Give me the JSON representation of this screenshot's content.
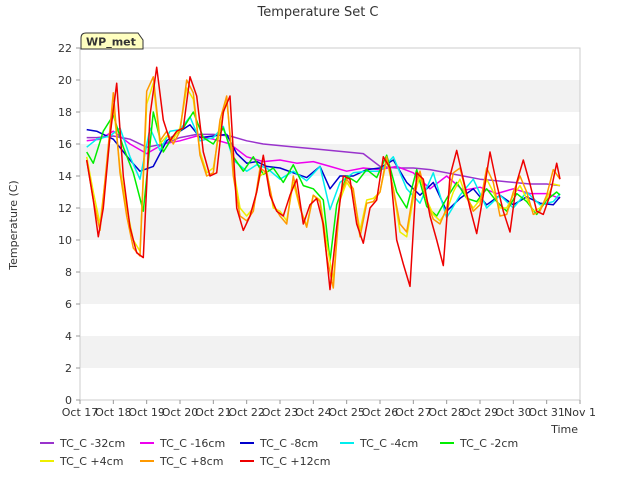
{
  "chart_data": {
    "type": "line",
    "title": "Temperature Set C",
    "xlabel": "Time",
    "ylabel": "Temperature (C)",
    "badge": "WP_met",
    "xlim": [
      0,
      15
    ],
    "ylim": [
      0,
      22
    ],
    "yticks": [
      0,
      2,
      4,
      6,
      8,
      10,
      12,
      14,
      16,
      18,
      20,
      22
    ],
    "xtick_labels": [
      "Oct 17",
      "Oct 18",
      "Oct 19",
      "Oct 20",
      "Oct 21",
      "Oct 22",
      "Oct 23",
      "Oct 24",
      "Oct 25",
      "Oct 26",
      "Oct 27",
      "Oct 28",
      "Oct 29",
      "Oct 30",
      "Oct 31",
      "Nov 1"
    ],
    "grid": "horizontal bands",
    "legend_position": "bottom",
    "series": [
      {
        "name": "TC_C -32cm",
        "color": "#9933cc",
        "x": [
          0.2,
          0.5,
          1.0,
          1.5,
          2.0,
          2.5,
          3.0,
          3.5,
          4.0,
          4.5,
          5.0,
          5.5,
          6.0,
          6.5,
          7.0,
          7.5,
          8.0,
          8.5,
          9.0,
          9.5,
          10.0,
          10.5,
          11.0,
          11.5,
          12.0,
          12.5,
          13.0,
          13.5,
          14.0,
          14.4
        ],
        "y": [
          16.4,
          16.4,
          16.5,
          16.3,
          15.8,
          16.0,
          16.4,
          16.6,
          16.6,
          16.5,
          16.2,
          16.0,
          15.9,
          15.8,
          15.7,
          15.6,
          15.5,
          15.4,
          14.6,
          14.5,
          14.5,
          14.4,
          14.2,
          14.0,
          13.8,
          13.7,
          13.6,
          13.5,
          13.5,
          13.4
        ]
      },
      {
        "name": "TC_C -16cm",
        "color": "#ee00ee",
        "x": [
          0.2,
          0.6,
          1.0,
          1.5,
          2.0,
          2.5,
          3.0,
          3.5,
          4.0,
          4.5,
          5.0,
          5.5,
          6.0,
          6.5,
          7.0,
          7.5,
          8.0,
          8.5,
          9.0,
          9.5,
          10.0,
          10.5,
          11.0,
          11.5,
          12.0,
          12.5,
          13.0,
          13.5,
          14.0,
          14.4
        ],
        "y": [
          16.2,
          16.3,
          16.8,
          16.0,
          15.4,
          16.0,
          16.2,
          16.5,
          16.3,
          16.0,
          15.2,
          14.9,
          15.0,
          14.8,
          14.9,
          14.6,
          14.3,
          14.5,
          14.4,
          14.6,
          14.2,
          13.2,
          14.0,
          13.1,
          13.3,
          12.9,
          13.2,
          12.9,
          12.9,
          12.6
        ]
      },
      {
        "name": "TC_C -8cm",
        "color": "#0000cc",
        "x": [
          0.2,
          0.5,
          1.0,
          1.5,
          1.8,
          2.2,
          2.6,
          3.0,
          3.3,
          3.6,
          4.0,
          4.4,
          4.7,
          5.0,
          5.3,
          5.6,
          6.0,
          6.4,
          6.8,
          7.2,
          7.5,
          7.8,
          8.2,
          8.6,
          9.0,
          9.4,
          9.8,
          10.2,
          10.6,
          11.0,
          11.4,
          11.8,
          12.2,
          12.6,
          13.0,
          13.4,
          13.8,
          14.2,
          14.4
        ],
        "y": [
          16.9,
          16.8,
          16.3,
          15.0,
          14.3,
          14.6,
          16.2,
          16.8,
          17.2,
          16.4,
          16.5,
          16.6,
          15.4,
          14.8,
          14.9,
          14.6,
          14.5,
          14.2,
          13.9,
          14.6,
          13.2,
          14.0,
          14.0,
          14.4,
          14.5,
          15.0,
          13.6,
          12.8,
          13.6,
          11.8,
          12.6,
          13.2,
          12.2,
          12.8,
          12.2,
          12.7,
          12.3,
          12.2,
          12.7
        ]
      },
      {
        "name": "TC_C -4cm",
        "color": "#00eeee",
        "x": [
          0.2,
          0.5,
          0.9,
          1.2,
          1.5,
          1.8,
          2.1,
          2.4,
          2.7,
          3.0,
          3.3,
          3.6,
          4.0,
          4.3,
          4.6,
          5.0,
          5.3,
          5.6,
          6.0,
          6.4,
          6.8,
          7.2,
          7.5,
          7.8,
          8.2,
          8.6,
          9.0,
          9.4,
          9.8,
          10.2,
          10.6,
          11.0,
          11.4,
          11.8,
          12.2,
          12.6,
          13.0,
          13.4,
          13.8,
          14.2,
          14.4
        ],
        "y": [
          15.8,
          16.3,
          16.5,
          17.0,
          15.2,
          13.8,
          17.0,
          15.6,
          16.8,
          16.9,
          17.7,
          16.2,
          16.4,
          17.1,
          15.0,
          14.3,
          14.7,
          14.5,
          13.8,
          14.3,
          13.7,
          14.6,
          11.9,
          13.6,
          14.2,
          14.3,
          14.3,
          15.2,
          13.2,
          12.3,
          14.2,
          11.4,
          12.8,
          13.8,
          12.0,
          12.8,
          12.0,
          13.0,
          12.2,
          12.4,
          12.9
        ]
      },
      {
        "name": "TC_C -2cm",
        "color": "#00ee00",
        "x": [
          0.2,
          0.4,
          0.7,
          1.0,
          1.3,
          1.6,
          1.9,
          2.2,
          2.5,
          2.8,
          3.1,
          3.4,
          3.7,
          4.0,
          4.3,
          4.6,
          4.9,
          5.2,
          5.5,
          5.8,
          6.1,
          6.4,
          6.7,
          7.0,
          7.3,
          7.5,
          7.7,
          8.0,
          8.3,
          8.6,
          8.9,
          9.2,
          9.5,
          9.8,
          10.1,
          10.4,
          10.7,
          11.0,
          11.3,
          11.6,
          11.9,
          12.2,
          12.5,
          12.8,
          13.1,
          13.4,
          13.7,
          14.0,
          14.3,
          14.4
        ],
        "y": [
          15.5,
          14.8,
          16.8,
          17.8,
          15.8,
          14.2,
          11.8,
          18.0,
          15.5,
          16.5,
          17.0,
          18.0,
          16.4,
          16.0,
          17.0,
          15.2,
          14.3,
          15.2,
          14.1,
          14.5,
          13.6,
          14.7,
          13.4,
          13.2,
          12.5,
          8.7,
          12.2,
          14.0,
          13.6,
          14.4,
          13.9,
          15.3,
          13.0,
          12.0,
          14.4,
          12.1,
          11.5,
          12.6,
          13.6,
          12.6,
          12.4,
          13.2,
          12.4,
          11.8,
          12.9,
          12.4,
          11.6,
          12.5,
          13.0,
          12.8
        ]
      },
      {
        "name": "TC_C +4cm",
        "color": "#eeee00",
        "x": [
          0.2,
          0.4,
          0.6,
          0.8,
          1.0,
          1.2,
          1.4,
          1.6,
          1.8,
          2.0,
          2.2,
          2.4,
          2.6,
          2.8,
          3.0,
          3.2,
          3.4,
          3.6,
          3.8,
          4.0,
          4.2,
          4.4,
          4.6,
          4.8,
          5.0,
          5.2,
          5.4,
          5.6,
          5.8,
          6.0,
          6.2,
          6.4,
          6.6,
          6.8,
          7.0,
          7.2,
          7.4,
          7.6,
          7.8,
          8.0,
          8.2,
          8.4,
          8.6,
          8.8,
          9.0,
          9.2,
          9.4,
          9.6,
          9.8,
          10.0,
          10.2,
          10.4,
          10.6,
          10.8,
          11.0,
          11.2,
          11.4,
          11.6,
          11.8,
          12.0,
          12.2,
          12.4,
          12.6,
          12.8,
          13.0,
          13.2,
          13.4,
          13.6,
          13.8,
          14.0,
          14.2,
          14.4
        ],
        "y": [
          15.2,
          13.0,
          11.0,
          14.5,
          18.5,
          14.5,
          12.0,
          10.0,
          9.3,
          18.5,
          19.8,
          16.0,
          16.5,
          16.3,
          17.0,
          19.5,
          18.8,
          15.5,
          14.2,
          14.5,
          17.0,
          18.8,
          14.5,
          12.0,
          11.5,
          12.0,
          14.0,
          14.3,
          12.0,
          11.8,
          11.2,
          13.6,
          12.0,
          10.9,
          12.8,
          12.5,
          9.8,
          7.5,
          12.5,
          13.6,
          13.0,
          10.6,
          12.5,
          12.6,
          13.0,
          15.0,
          13.2,
          10.5,
          10.2,
          12.6,
          14.0,
          12.5,
          11.6,
          11.2,
          11.8,
          13.0,
          13.8,
          12.6,
          12.0,
          12.5,
          13.8,
          13.0,
          12.0,
          12.0,
          12.8,
          13.4,
          12.6,
          11.8,
          12.0,
          12.6,
          13.5,
          13.4
        ]
      },
      {
        "name": "TC_C +8cm",
        "color": "#ff9900",
        "x": [
          0.2,
          0.4,
          0.6,
          0.8,
          1.0,
          1.2,
          1.4,
          1.6,
          1.8,
          2.0,
          2.2,
          2.4,
          2.6,
          2.8,
          3.0,
          3.2,
          3.4,
          3.6,
          3.8,
          4.0,
          4.2,
          4.4,
          4.6,
          4.8,
          5.0,
          5.2,
          5.4,
          5.6,
          5.8,
          6.0,
          6.2,
          6.4,
          6.6,
          6.8,
          7.0,
          7.2,
          7.4,
          7.6,
          7.8,
          8.0,
          8.2,
          8.4,
          8.6,
          8.8,
          9.0,
          9.2,
          9.4,
          9.6,
          9.8,
          10.0,
          10.2,
          10.4,
          10.6,
          10.8,
          11.0,
          11.2,
          11.4,
          11.6,
          11.8,
          12.0,
          12.2,
          12.4,
          12.6,
          12.8,
          13.0,
          13.2,
          13.4,
          13.6,
          13.8,
          14.0,
          14.2,
          14.4
        ],
        "y": [
          15.0,
          12.5,
          10.6,
          14.8,
          19.2,
          14.2,
          11.5,
          9.5,
          9.0,
          19.3,
          20.2,
          16.2,
          16.8,
          16.0,
          16.8,
          20.0,
          19.2,
          15.3,
          14.0,
          14.2,
          17.5,
          19.0,
          14.0,
          11.5,
          11.2,
          11.8,
          14.5,
          14.2,
          12.2,
          11.5,
          11.0,
          14.0,
          12.0,
          10.8,
          12.8,
          12.4,
          9.0,
          7.0,
          12.8,
          13.8,
          13.2,
          10.2,
          12.3,
          12.4,
          13.0,
          15.2,
          13.2,
          11.0,
          10.5,
          13.0,
          14.3,
          12.4,
          11.3,
          11.0,
          12.0,
          14.2,
          14.5,
          12.8,
          11.8,
          12.2,
          14.5,
          13.6,
          11.5,
          11.6,
          13.0,
          14.0,
          13.0,
          11.6,
          11.8,
          12.8,
          14.4,
          13.8
        ]
      },
      {
        "name": "TC_C +12cm",
        "color": "#ee0000",
        "x": [
          0.2,
          0.4,
          0.55,
          0.7,
          0.9,
          1.1,
          1.3,
          1.5,
          1.7,
          1.9,
          2.1,
          2.3,
          2.5,
          2.7,
          2.9,
          3.1,
          3.3,
          3.5,
          3.7,
          3.9,
          4.1,
          4.3,
          4.5,
          4.7,
          4.9,
          5.1,
          5.3,
          5.5,
          5.7,
          5.9,
          6.1,
          6.3,
          6.5,
          6.7,
          6.9,
          7.1,
          7.3,
          7.5,
          7.7,
          7.9,
          8.1,
          8.3,
          8.5,
          8.7,
          8.9,
          9.1,
          9.3,
          9.5,
          9.7,
          9.9,
          10.1,
          10.3,
          10.5,
          10.7,
          10.9,
          11.1,
          11.3,
          11.5,
          11.7,
          11.9,
          12.1,
          12.3,
          12.5,
          12.7,
          12.9,
          13.1,
          13.3,
          13.5,
          13.7,
          13.9,
          14.1,
          14.3,
          14.4
        ],
        "y": [
          15.0,
          12.5,
          10.2,
          12.0,
          16.5,
          19.8,
          14.0,
          10.8,
          9.2,
          8.9,
          17.8,
          20.8,
          17.5,
          16.2,
          16.8,
          17.0,
          20.2,
          19.0,
          15.5,
          14.0,
          14.2,
          18.0,
          19.0,
          12.0,
          10.6,
          11.5,
          13.0,
          15.3,
          12.8,
          11.8,
          11.5,
          12.8,
          13.8,
          11.0,
          12.2,
          12.6,
          11.0,
          6.9,
          10.8,
          14.0,
          13.8,
          11.0,
          9.8,
          12.0,
          12.5,
          15.2,
          14.5,
          10.0,
          8.5,
          7.1,
          14.2,
          13.8,
          11.5,
          10.0,
          8.4,
          14.0,
          15.6,
          13.8,
          12.0,
          10.4,
          12.8,
          15.5,
          13.5,
          11.8,
          10.5,
          13.6,
          15.0,
          13.5,
          11.8,
          11.6,
          12.8,
          14.8,
          13.8
        ]
      }
    ]
  }
}
